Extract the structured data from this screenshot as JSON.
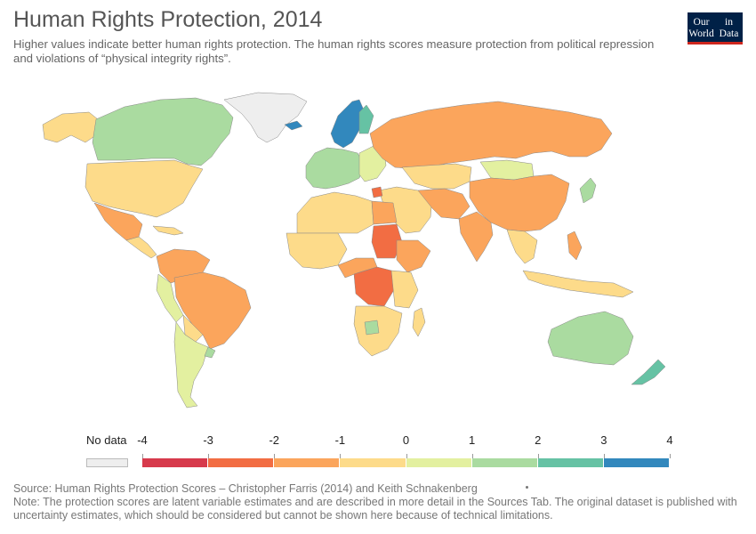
{
  "header": {
    "title": "Human Rights Protection, 2014",
    "subtitle": "Higher values indicate better human rights protection. The human rights scores measure protection from political repression and violations of “physical integrity rights”."
  },
  "logo": {
    "line1": "Our World",
    "line2": "in Data"
  },
  "legend": {
    "no_data_label": "No data",
    "no_data_color": "#eeeeee",
    "ticks": [
      "-4",
      "-3",
      "-2",
      "-1",
      "0",
      "1",
      "2",
      "3",
      "4"
    ],
    "colors": [
      "#d73a4c",
      "#f26d43",
      "#fba55c",
      "#fddb8a",
      "#e3f0a0",
      "#aadba0",
      "#66c2a4",
      "#3288bd"
    ]
  },
  "footer": {
    "source": "Source: Human Rights Protection Scores – Christopher Farris (2014) and Keith Schnakenberg",
    "note": "Note: The protection scores are latent variable estimates and are described in more detail in the Sources Tab. The original dataset is published with uncertainty estimates, which should be considered but cannot be shown here because of technical limitations."
  },
  "chart_data": {
    "type": "choropleth",
    "title": "Human Rights Protection, 2014",
    "legend_placement": "bottom",
    "color_scale_range": [
      -4,
      4
    ],
    "regions": [
      {
        "name": "Canada",
        "value": 1.5
      },
      {
        "name": "United States",
        "value": 0.2
      },
      {
        "name": "Mexico",
        "value": -1.5
      },
      {
        "name": "Greenland",
        "value": null
      },
      {
        "name": "Central America",
        "value": -0.5
      },
      {
        "name": "Colombia",
        "value": -1.8
      },
      {
        "name": "Venezuela",
        "value": -0.6
      },
      {
        "name": "Brazil",
        "value": -1.4
      },
      {
        "name": "Peru",
        "value": 0.5
      },
      {
        "name": "Bolivia",
        "value": 0.3
      },
      {
        "name": "Chile",
        "value": 0.6
      },
      {
        "name": "Argentina",
        "value": 0.7
      },
      {
        "name": "Uruguay",
        "value": 2.2
      },
      {
        "name": "Norway",
        "value": 3.5
      },
      {
        "name": "Sweden",
        "value": 3.2
      },
      {
        "name": "Finland",
        "value": 3.0
      },
      {
        "name": "Iceland",
        "value": 3.4
      },
      {
        "name": "Western Europe",
        "value": 1.8
      },
      {
        "name": "Eastern Europe",
        "value": 0.5
      },
      {
        "name": "Russia",
        "value": -1.5
      },
      {
        "name": "Kazakhstan",
        "value": -0.6
      },
      {
        "name": "Mongolia",
        "value": 0.8
      },
      {
        "name": "China",
        "value": -1.6
      },
      {
        "name": "India",
        "value": -1.8
      },
      {
        "name": "Pakistan",
        "value": -1.9
      },
      {
        "name": "Iran",
        "value": -1.5
      },
      {
        "name": "Syria",
        "value": -3.0
      },
      {
        "name": "Saudi Arabia",
        "value": -0.6
      },
      {
        "name": "Japan",
        "value": 1.8
      },
      {
        "name": "Southeast Asia",
        "value": -0.8
      },
      {
        "name": "Philippines",
        "value": -1.5
      },
      {
        "name": "Indonesia",
        "value": -0.5
      },
      {
        "name": "Australia",
        "value": 1.6
      },
      {
        "name": "New Zealand",
        "value": 2.8
      },
      {
        "name": "North Africa",
        "value": -0.6
      },
      {
        "name": "Egypt",
        "value": -1.4
      },
      {
        "name": "Sudan",
        "value": -2.8
      },
      {
        "name": "DR Congo",
        "value": -2.7
      },
      {
        "name": "Ethiopia",
        "value": -1.3
      },
      {
        "name": "West Africa",
        "value": -0.4
      },
      {
        "name": "Southern Africa",
        "value": -0.3
      },
      {
        "name": "Botswana",
        "value": 1.5
      },
      {
        "name": "Madagascar",
        "value": -0.2
      }
    ]
  }
}
